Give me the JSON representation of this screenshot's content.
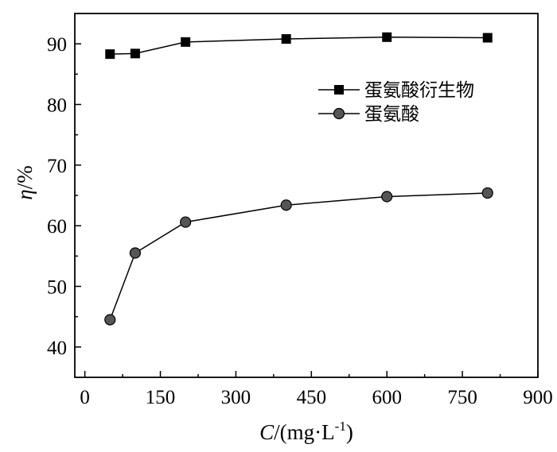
{
  "chart_data": {
    "type": "line",
    "xlabel": {
      "var": "C",
      "rest": "/(mg·L",
      "sup": "-1",
      "close": ")"
    },
    "ylabel": {
      "var": "η",
      "rest": "/%"
    },
    "xlim": [
      -20,
      900
    ],
    "ylim": [
      35,
      95
    ],
    "xticks": [
      0,
      150,
      300,
      450,
      600,
      750,
      900
    ],
    "yticks": [
      40,
      50,
      60,
      70,
      80,
      90
    ],
    "x": [
      50,
      100,
      200,
      400,
      600,
      800
    ],
    "series": [
      {
        "name": "蛋氨酸衍生物",
        "marker": "square",
        "color": "#000000",
        "values": [
          88.3,
          88.4,
          90.3,
          90.8,
          91.1,
          91.0
        ]
      },
      {
        "name": "蛋氨酸",
        "marker": "circle",
        "color": "#555555",
        "values": [
          44.5,
          55.5,
          60.6,
          63.4,
          64.8,
          65.4
        ]
      }
    ],
    "grid": false,
    "legend": "top-right"
  }
}
